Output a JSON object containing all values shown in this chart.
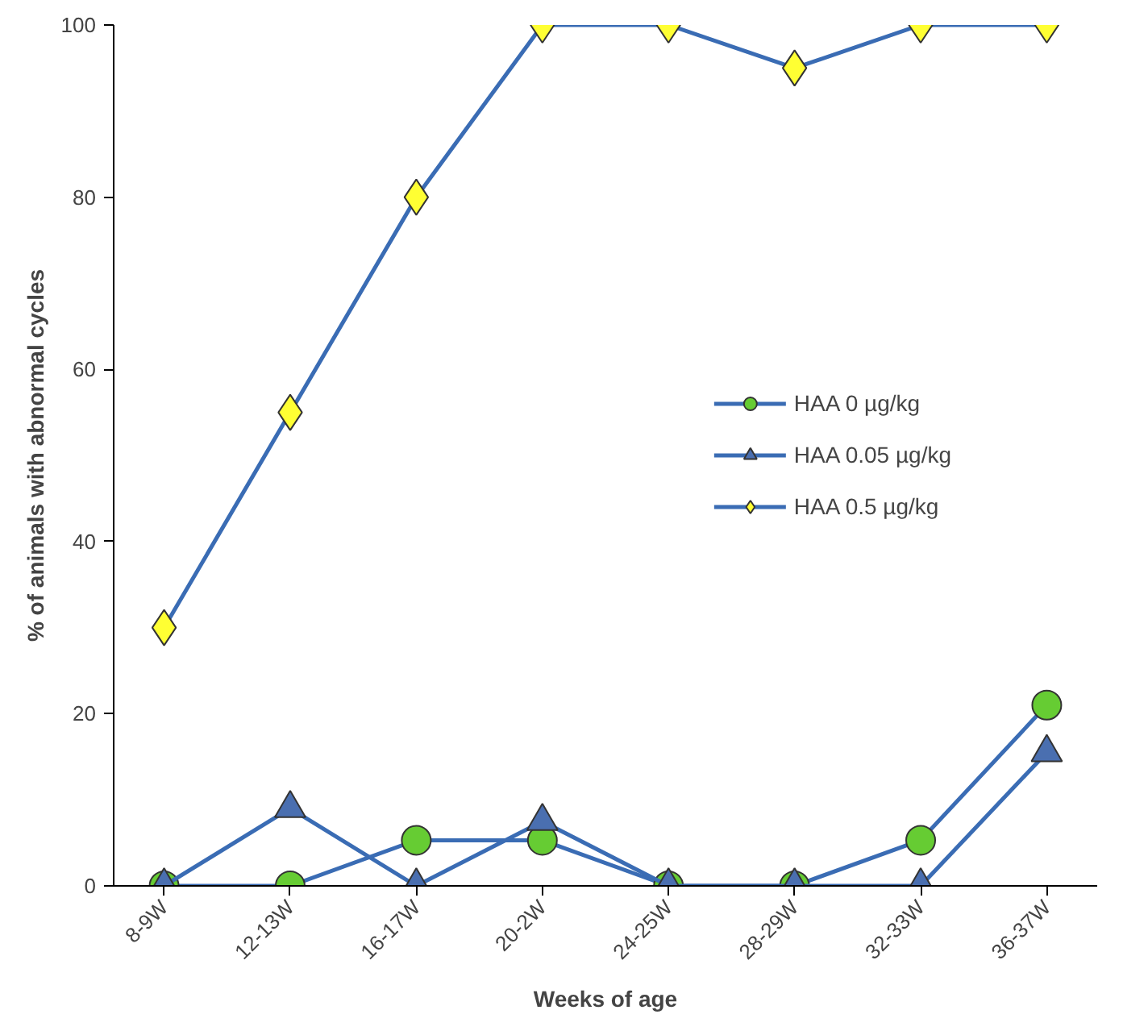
{
  "chart_data": {
    "type": "line",
    "xlabel": "Weeks of age",
    "ylabel": "% of animals with abnormal cycles",
    "categories": [
      "8-9W",
      "12-13W",
      "16-17W",
      "20-2W",
      "24-25W",
      "28-29W",
      "32-33W",
      "36-37W"
    ],
    "ylim": [
      0,
      100
    ],
    "yticks": [
      0,
      20,
      40,
      60,
      80,
      100
    ],
    "grid": false,
    "legend": "right",
    "line_style": "solid",
    "series": [
      {
        "name": "HAA 0 µg/kg",
        "color": "#66cc33",
        "marker": "circle",
        "values": [
          0,
          0,
          5.3,
          5.3,
          0,
          0,
          5.3,
          21
        ]
      },
      {
        "name": "HAA 0.05 µg/kg",
        "color": "#4a6fb0",
        "marker": "triangle",
        "values": [
          0,
          9,
          0,
          7.5,
          0,
          0,
          0,
          15.5
        ]
      },
      {
        "name": "HAA 0.5 µg/kg",
        "color": "#ffff33",
        "marker": "diamond",
        "values": [
          30,
          55,
          80,
          100,
          100,
          95,
          100,
          100
        ]
      }
    ]
  }
}
